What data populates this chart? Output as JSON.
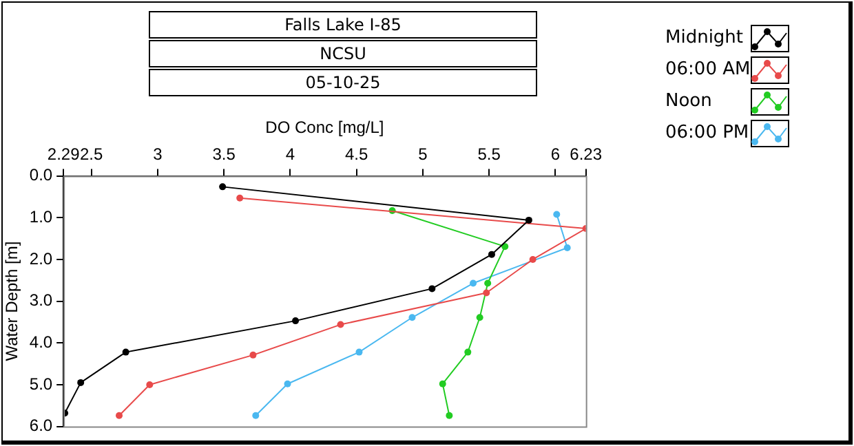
{
  "chart_data": {
    "type": "line",
    "title": "Falls Lake I-85",
    "subtitle": "NCSU",
    "annotations": [
      "05-10-25"
    ],
    "xlabel": "DO Conc [mg/L]",
    "ylabel": "Water Depth [m]",
    "xlim": [
      2.29,
      6.23
    ],
    "xticks": [
      2.29,
      2.5,
      3,
      3.5,
      4,
      4.5,
      5,
      5.5,
      6,
      6.23
    ],
    "ylim": [
      6,
      0
    ],
    "yticks": [
      {
        "value": 0,
        "label": "0.0"
      },
      {
        "value": 1,
        "label": "1.0"
      },
      {
        "value": 2,
        "label": "2.0"
      },
      {
        "value": 3,
        "label": "3.0"
      },
      {
        "value": 4,
        "label": "4.0"
      },
      {
        "value": 5,
        "label": "5.0"
      },
      {
        "value": 6,
        "label": "6.0"
      }
    ],
    "grid": false,
    "legend": "top right",
    "marker": "circle",
    "line_style": "solid",
    "series": [
      {
        "name": "Midnight",
        "color": "#000000",
        "x": [
          3.49,
          5.8,
          5.52,
          5.07,
          4.04,
          2.76,
          2.42,
          2.3
        ],
        "values": [
          0.26,
          1.06,
          1.88,
          2.7,
          3.47,
          4.22,
          4.95,
          5.68
        ]
      },
      {
        "name": "06:00 AM",
        "color": "#e84a4a",
        "x": [
          3.62,
          6.23,
          5.83,
          5.48,
          4.38,
          3.72,
          2.94,
          2.71
        ],
        "values": [
          0.53,
          1.26,
          2.0,
          2.8,
          3.56,
          4.29,
          5.0,
          5.74
        ]
      },
      {
        "name": "Noon",
        "color": "#22cc22",
        "x": [
          4.77,
          5.62,
          5.49,
          5.43,
          5.34,
          5.15,
          5.2
        ],
        "values": [
          0.83,
          1.69,
          2.57,
          3.39,
          4.22,
          4.98,
          5.74
        ]
      },
      {
        "name": "06:00 PM",
        "color": "#4ab8f0",
        "x": [
          6.01,
          6.09,
          5.38,
          4.92,
          4.52,
          3.98,
          3.74
        ],
        "values": [
          0.92,
          1.72,
          2.57,
          3.39,
          4.22,
          4.98,
          5.74
        ]
      }
    ]
  }
}
